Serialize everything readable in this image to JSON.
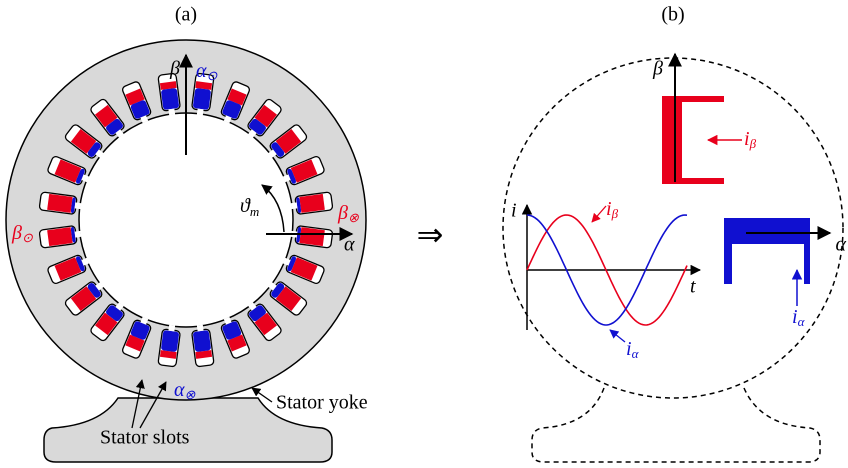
{
  "panel_a": {
    "label": "(a)",
    "beta_axis": "β",
    "alpha_odot": {
      "symbol": "α",
      "subscript": "⊙"
    },
    "theta": {
      "symbol": "ϑ",
      "subscript": "m"
    },
    "beta_otimes": {
      "symbol": "β",
      "subscript": "⊗"
    },
    "alpha_axis": "α",
    "beta_odot": {
      "symbol": "β",
      "subscript": "⊙"
    },
    "alpha_otimes": {
      "symbol": "α",
      "subscript": "⊗"
    },
    "stator_yoke": "Stator yoke",
    "stator_slots": "Stator slots"
  },
  "arrow": "⇒",
  "panel_b": {
    "label": "(b)",
    "beta_axis": "β",
    "alpha_axis": "α",
    "i_beta_coil": {
      "symbol": "i",
      "subscript": "β"
    },
    "i_alpha_coil": {
      "symbol": "i",
      "subscript": "α"
    },
    "i_axis": "i",
    "t_axis": "t",
    "i_beta_wave": {
      "symbol": "i",
      "subscript": "β"
    },
    "i_alpha_wave": {
      "symbol": "i",
      "subscript": "α"
    }
  }
}
